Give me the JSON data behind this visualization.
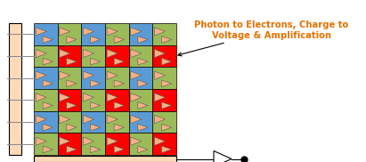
{
  "fig_width": 4.11,
  "fig_height": 1.82,
  "dpi": 100,
  "grid_rows": 6,
  "grid_cols": 6,
  "color_blue": "#5B9BD5",
  "color_green": "#9BBB59",
  "color_red": "#FF0000",
  "color_tan": "#F4B183",
  "color_peach": "#FFDAB9",
  "annotation_text": "Photon to Electrons, Charge to\nVoltage & Amplification",
  "annotation_color": "#E87000",
  "annotation_fontsize": 7.2
}
